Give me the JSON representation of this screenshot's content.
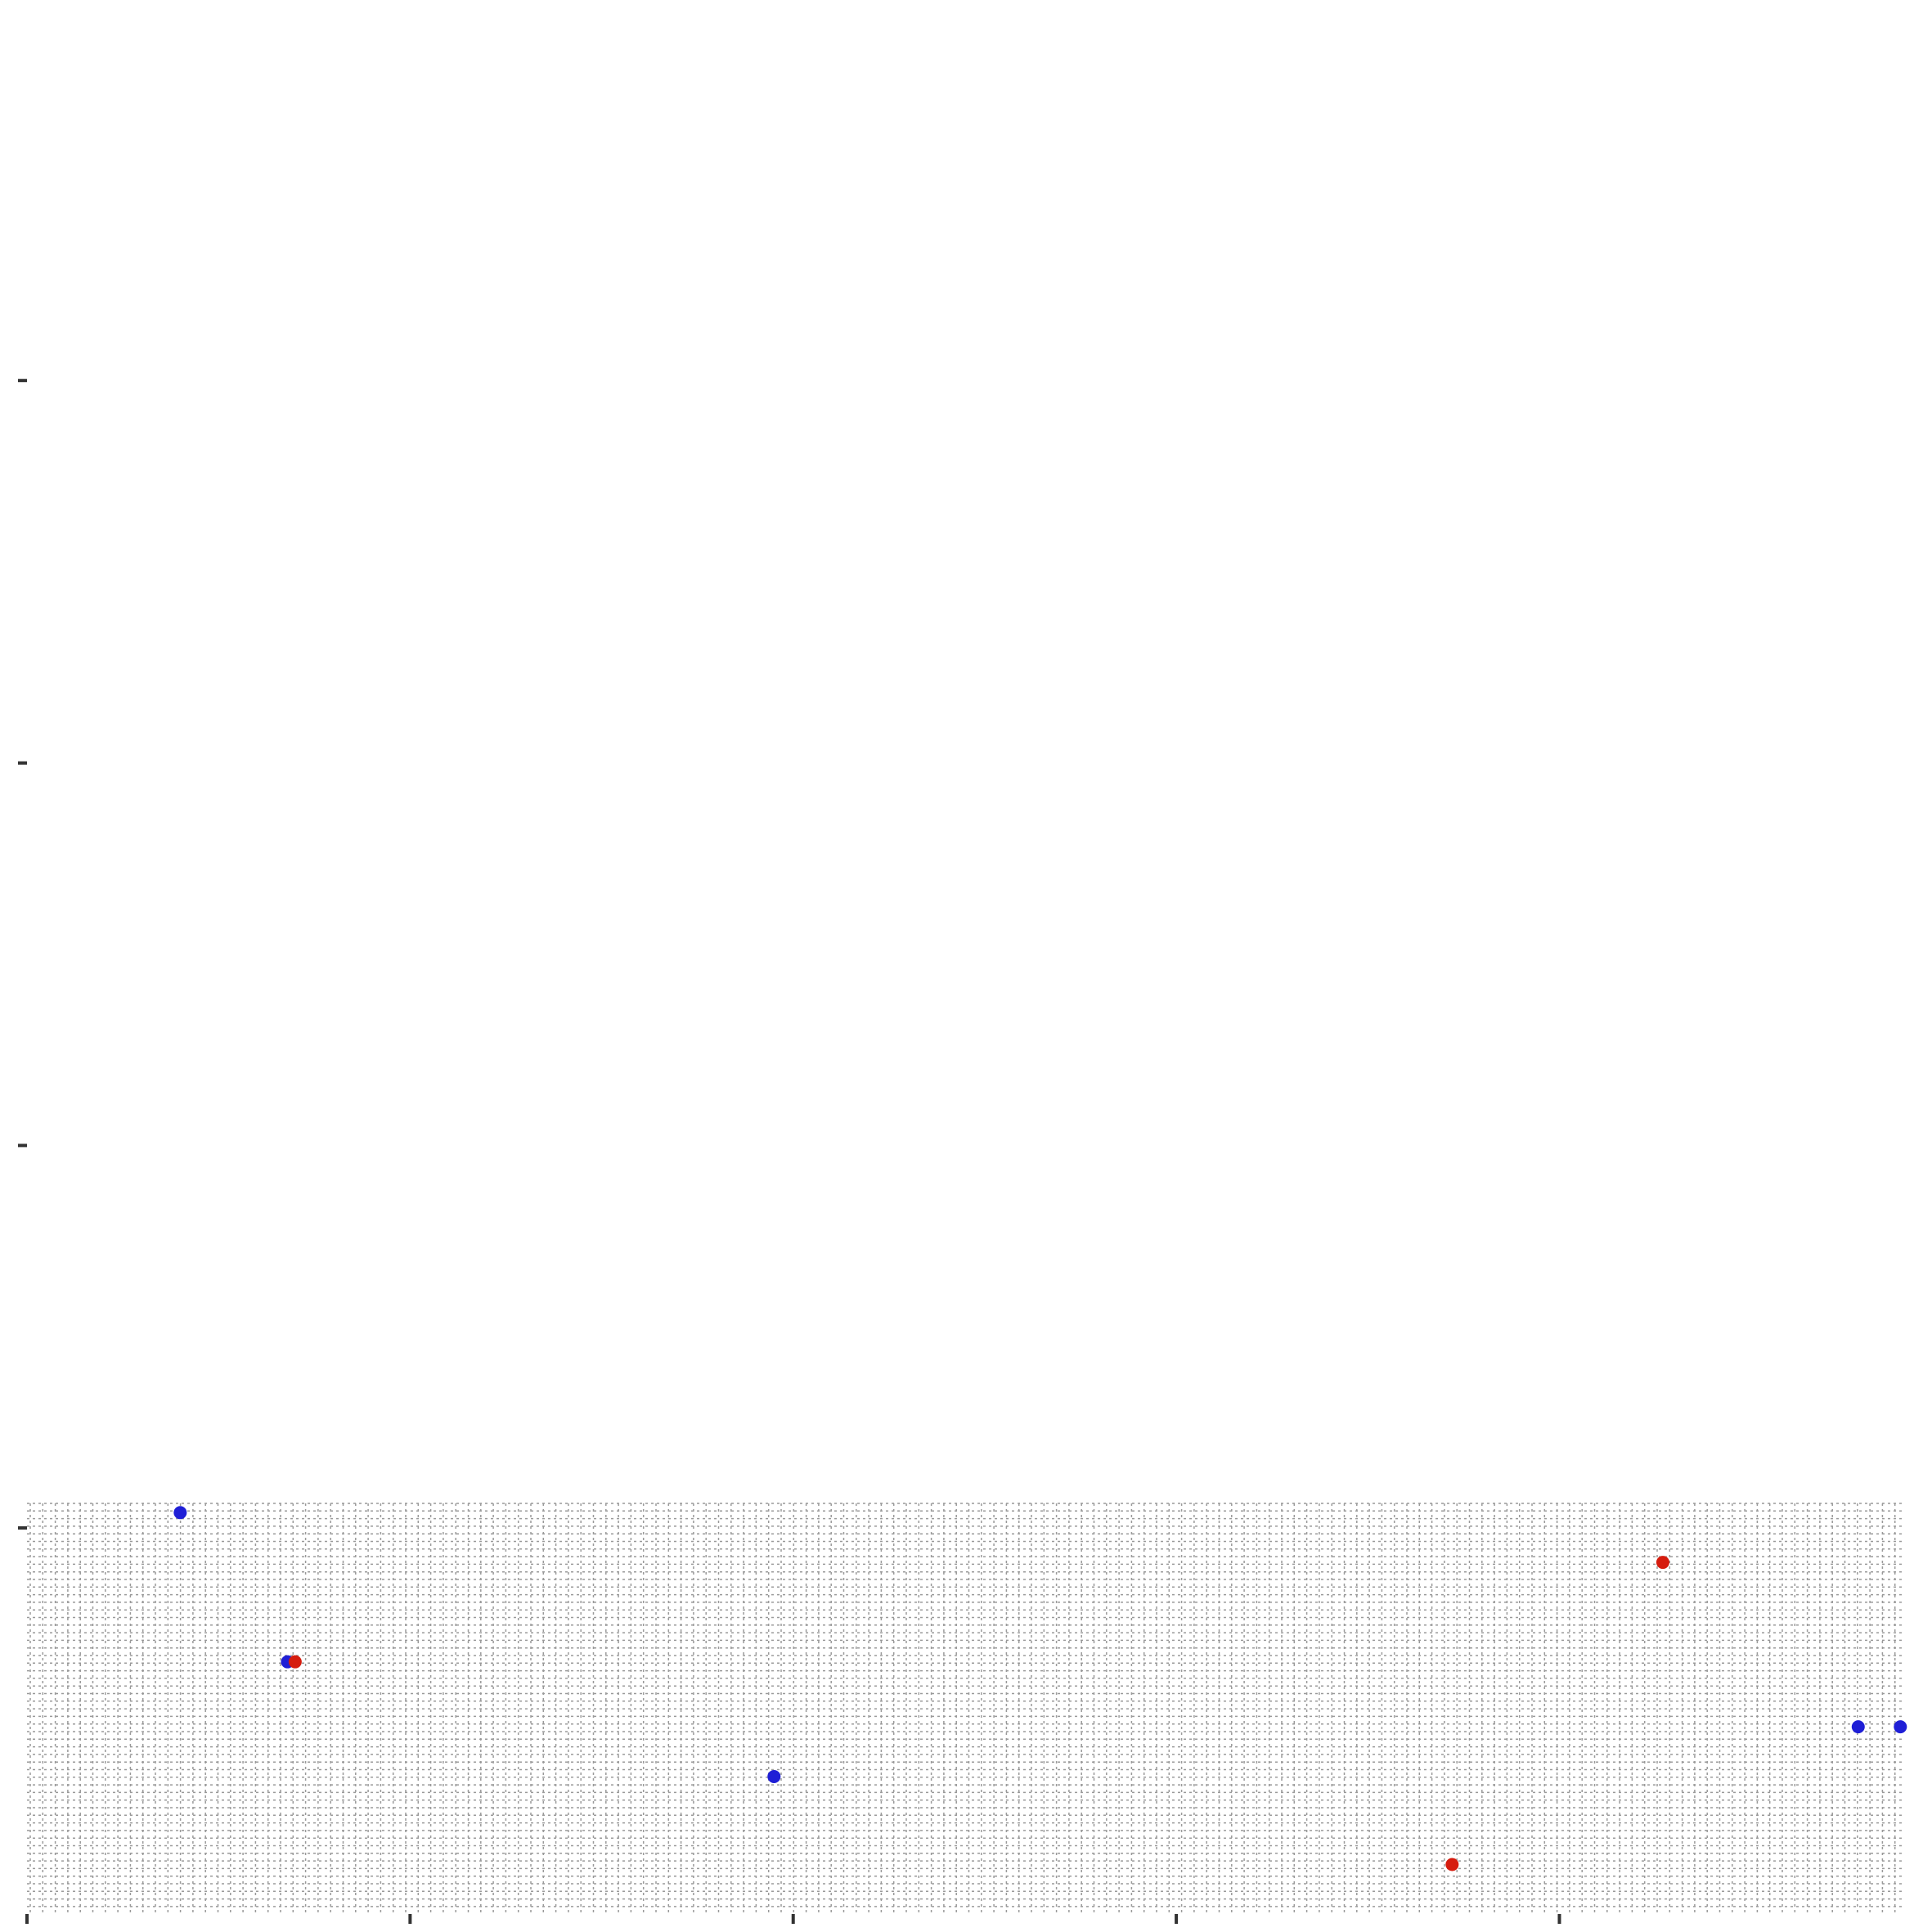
{
  "chart_data": {
    "type": "scatter",
    "title": "",
    "xlabel": "",
    "ylabel": "",
    "xlim": [
      0,
      4.9
    ],
    "ylim": [
      -1.0,
      4.0
    ],
    "x_ticks": [
      0,
      1,
      2,
      3,
      4
    ],
    "y_ticks": [
      0,
      1,
      2,
      3
    ],
    "grid": true,
    "legend": "none",
    "series": [
      {
        "color": "#1f1fd6",
        "points": [
          [
            0.4,
            0.04
          ],
          [
            0.68,
            -0.35
          ],
          [
            1.95,
            -0.65
          ],
          [
            4.78,
            -0.52
          ],
          [
            4.89,
            -0.52
          ]
        ]
      },
      {
        "color": "#d61c0e",
        "points": [
          [
            0.7,
            -0.35
          ],
          [
            3.72,
            -0.88
          ],
          [
            4.27,
            -0.09
          ]
        ]
      }
    ]
  }
}
